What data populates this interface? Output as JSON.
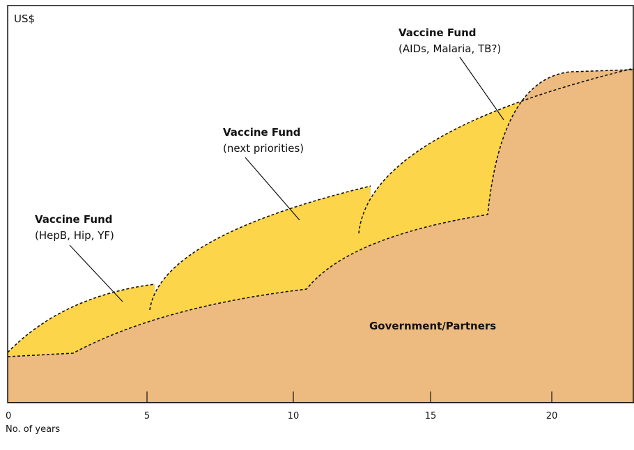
{
  "y_axis_label": "US$",
  "x_axis": {
    "label": "No. of years",
    "ticks": [
      0,
      5,
      10,
      15,
      20
    ]
  },
  "regions": [
    {
      "title": "Vaccine Fund",
      "subtitle": "(HepB, Hip, YF)"
    },
    {
      "title": "Vaccine Fund",
      "subtitle": "(next priorities)"
    },
    {
      "title": "Vaccine Fund",
      "subtitle": "(AIDs, Malaria, TB?)"
    }
  ],
  "base_label": "Government/Partners"
}
